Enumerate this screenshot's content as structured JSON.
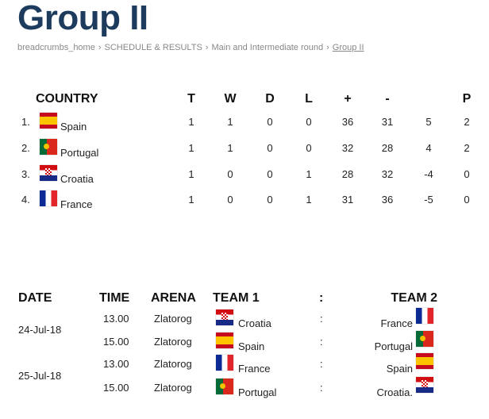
{
  "title": "Group II",
  "breadcrumb": [
    "breadcrumbs_home",
    "SCHEDULE & RESULTS",
    "Main and Intermediate round",
    "Group II"
  ],
  "standings": {
    "headers": [
      "COUNTRY",
      "T",
      "W",
      "D",
      "L",
      "+",
      "-",
      "",
      "P"
    ],
    "rows": [
      {
        "rank": "1.",
        "country": "Spain",
        "flag": "es",
        "T": "1",
        "W": "1",
        "D": "0",
        "L": "0",
        "plus": "36",
        "minus": "31",
        "diff": "5",
        "P": "2"
      },
      {
        "rank": "2.",
        "country": "Portugal",
        "flag": "pt",
        "T": "1",
        "W": "1",
        "D": "0",
        "L": "0",
        "plus": "32",
        "minus": "28",
        "diff": "4",
        "P": "2"
      },
      {
        "rank": "3.",
        "country": "Croatia",
        "flag": "hr",
        "T": "1",
        "W": "0",
        "D": "0",
        "L": "1",
        "plus": "28",
        "minus": "32",
        "diff": "-4",
        "P": "0"
      },
      {
        "rank": "4.",
        "country": "France",
        "flag": "fr",
        "T": "1",
        "W": "0",
        "D": "0",
        "L": "1",
        "plus": "31",
        "minus": "36",
        "diff": "-5",
        "P": "0"
      }
    ]
  },
  "schedule": {
    "headers": {
      "date": "DATE",
      "time": "TIME",
      "arena": "ARENA",
      "team1": "TEAM 1",
      "sep": ":",
      "team2": "TEAM 2"
    },
    "dates": [
      "24-Jul-18",
      "25-Jul-18"
    ],
    "matches": [
      {
        "time": "13.00",
        "arena": "Zlatorog",
        "team1": "Croatia",
        "flag1": "hr",
        "sep": ":",
        "team2": "France",
        "flag2": "fr"
      },
      {
        "time": "15.00",
        "arena": "Zlatorog",
        "team1": "Spain",
        "flag1": "es",
        "sep": ":",
        "team2": "Portugal",
        "flag2": "pt"
      },
      {
        "time": "13.00",
        "arena": "Zlatorog",
        "team1": "France",
        "flag1": "fr",
        "sep": ":",
        "team2": "Spain",
        "flag2": "es"
      },
      {
        "time": "15.00",
        "arena": "Zlatorog",
        "team1": "Portugal",
        "flag1": "pt",
        "sep": ":",
        "team2": "Croatia.",
        "flag2": "hr"
      }
    ]
  }
}
